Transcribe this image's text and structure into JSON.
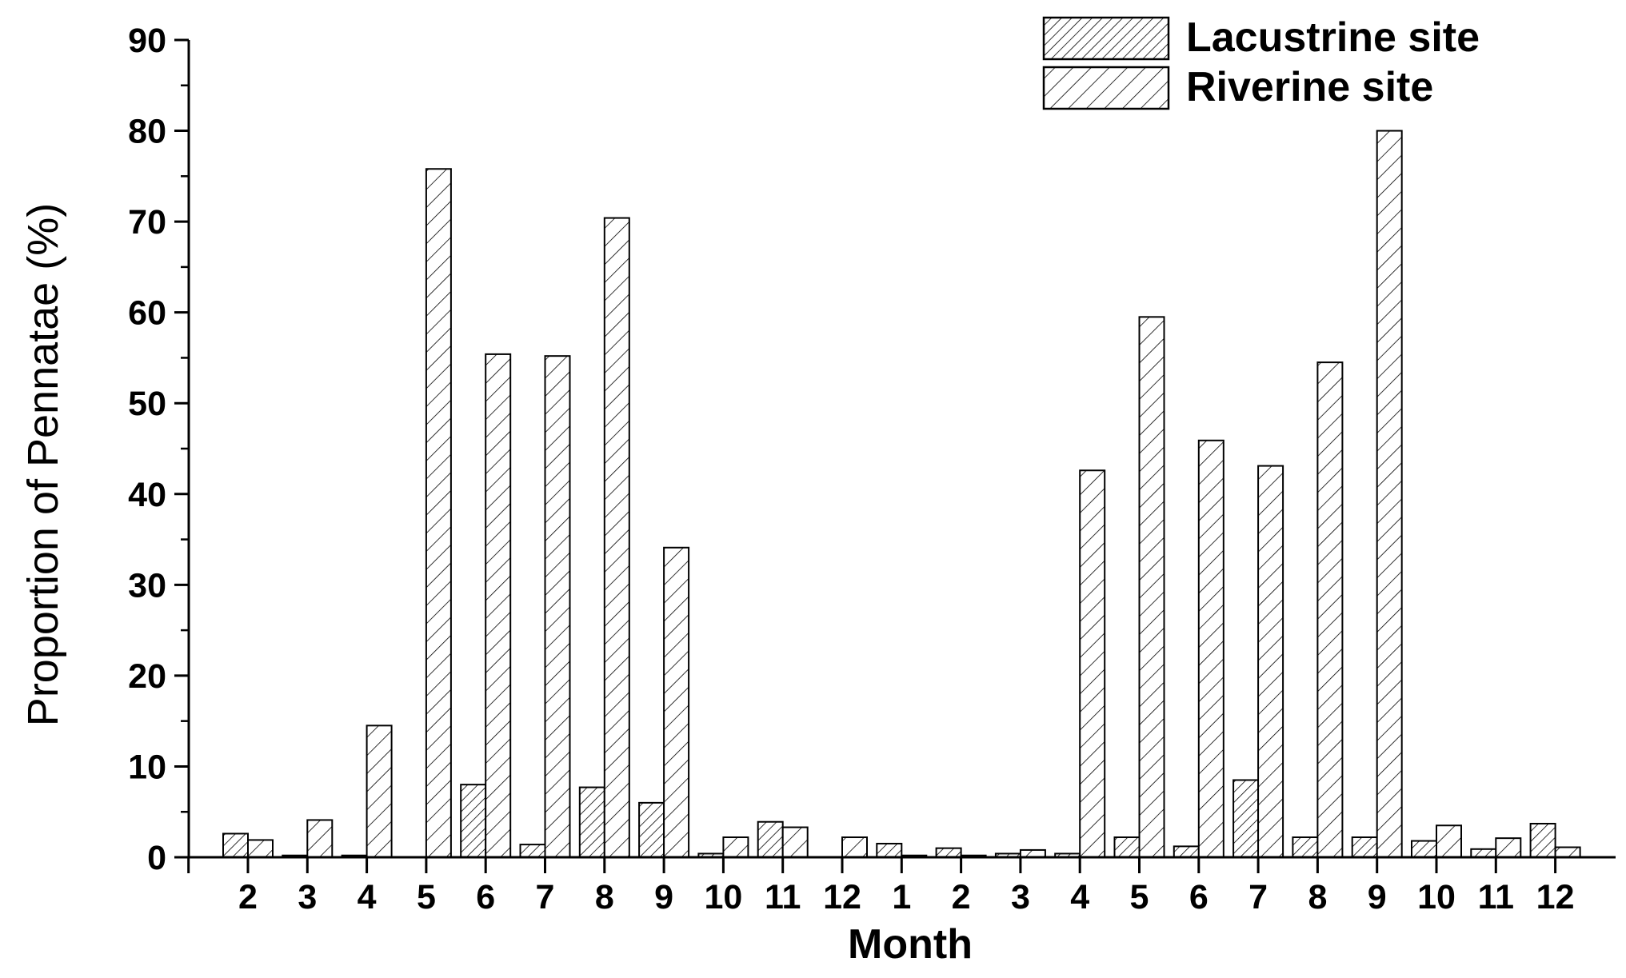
{
  "chart_data": {
    "type": "bar",
    "xlabel": "Month",
    "ylabel": "Proportion of Pennatae (%)",
    "ylim": [
      0,
      90
    ],
    "y_ticks": [
      0,
      10,
      20,
      30,
      40,
      50,
      60,
      70,
      80,
      90
    ],
    "grid": false,
    "legend_position": "top-right",
    "categories": [
      "2",
      "3",
      "4",
      "5",
      "6",
      "7",
      "8",
      "9",
      "10",
      "11",
      "12",
      "1",
      "2",
      "3",
      "4",
      "5",
      "6",
      "7",
      "8",
      "9",
      "10",
      "11",
      "12"
    ],
    "series": [
      {
        "name": "Lacustrine site",
        "pattern": "dense-hatch",
        "values": [
          2.6,
          0.2,
          0.2,
          0,
          8.0,
          1.4,
          7.7,
          6.0,
          0.4,
          3.9,
          0,
          1.5,
          1.0,
          0.4,
          0.4,
          2.2,
          1.2,
          8.5,
          2.2,
          2.2,
          1.8,
          0.9,
          3.7
        ]
      },
      {
        "name": "Riverine site",
        "pattern": "sparse-hatch",
        "values": [
          1.9,
          4.1,
          14.5,
          75.8,
          55.4,
          55.2,
          70.4,
          34.1,
          2.2,
          3.3,
          2.2,
          0.2,
          0.2,
          0.8,
          42.6,
          59.5,
          45.9,
          43.1,
          54.5,
          80.0,
          3.5,
          2.1,
          1.1
        ]
      }
    ]
  }
}
